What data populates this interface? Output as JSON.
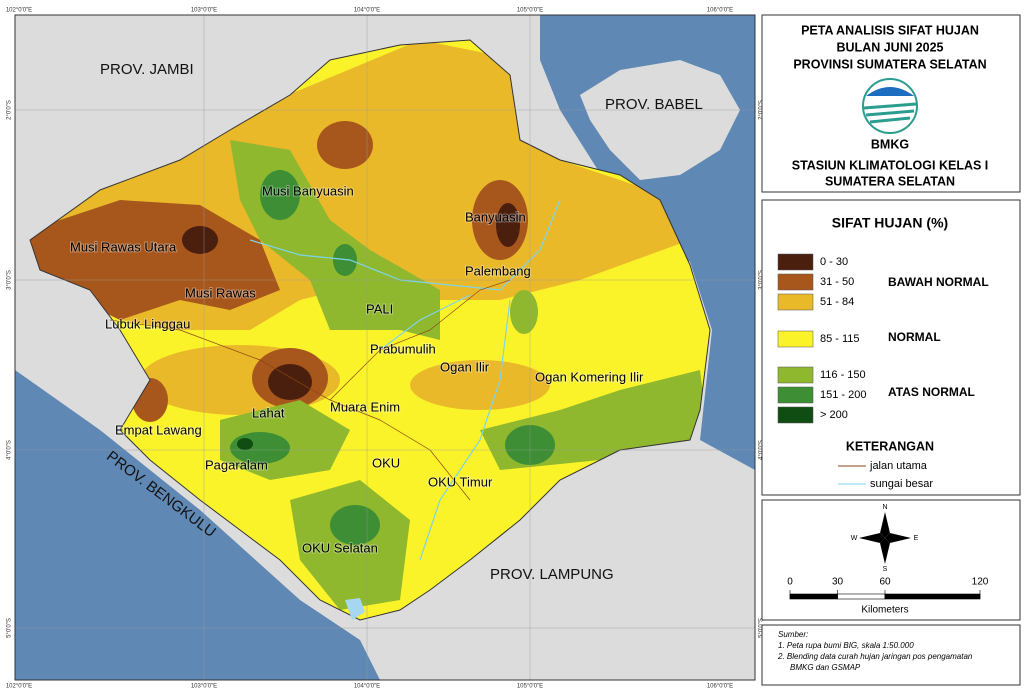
{
  "header": {
    "title_lines": [
      "PETA ANALISIS SIFAT HUJAN",
      "BULAN JUNI 2025",
      "PROVINSI SUMATERA SELATAN"
    ],
    "agency": "BMKG",
    "station_lines": [
      "STASIUN KLIMATOLOGI  KELAS I",
      "SUMATERA SELATAN"
    ]
  },
  "map": {
    "provinces": [
      "PROV. JAMBI",
      "PROV. BABEL",
      "PROV. BENGKULU",
      "PROV. LAMPUNG"
    ],
    "regions": [
      "Musi Banyuasin",
      "Banyuasin",
      "Musi Rawas Utara",
      "Palembang",
      "Musi Rawas",
      "PALI",
      "Lubuk Linggau",
      "Prabumulih",
      "Ogan Ilir",
      "Ogan Komering Ilir",
      "Lahat",
      "Muara Enim",
      "Empat Lawang",
      "Pagaralam",
      "OKU",
      "OKU Timur",
      "OKU Selatan"
    ],
    "lon_labels": [
      "102°0'0\"E",
      "103°0'0\"E",
      "104°0'0\"E",
      "105°0'0\"E",
      "106°0'0\"E"
    ],
    "lat_labels": [
      "2°0'0\"S",
      "3°0'0\"S",
      "4°0'0\"S",
      "5°0'0\"S"
    ]
  },
  "legend": {
    "title": "SIFAT HUJAN (%)",
    "classes": [
      {
        "label": "0 - 30",
        "color": "#4a1f0e"
      },
      {
        "label": "31 - 50",
        "color": "#a8571c"
      },
      {
        "label": "51 - 84",
        "color": "#e9b92a"
      },
      {
        "label": "85 - 115",
        "color": "#fbf32a"
      },
      {
        "label": "116 - 150",
        "color": "#8fb82e"
      },
      {
        "label": "151 - 200",
        "color": "#3d8e34"
      },
      {
        "label": "> 200",
        "color": "#0f4d12"
      }
    ],
    "groups": [
      "BAWAH NORMAL",
      "NORMAL",
      "ATAS NORMAL"
    ]
  },
  "keterangan": {
    "title": "KETERANGAN",
    "items": [
      {
        "label": "jalan utama",
        "color": "#8b4513"
      },
      {
        "label": "sungai besar",
        "color": "#7fd4e8"
      }
    ]
  },
  "compass": [
    "N",
    "S",
    "E",
    "W"
  ],
  "scale": {
    "ticks": [
      0,
      30,
      60,
      120
    ],
    "unit": "Kilometers"
  },
  "source": {
    "title": "Sumber:",
    "lines": [
      "1. Peta rupa bumi BIG, skala 1:50.000",
      "2. Blending data curah hujan jaringan pos pengamatan",
      "BMKG dan GSMAP"
    ]
  }
}
